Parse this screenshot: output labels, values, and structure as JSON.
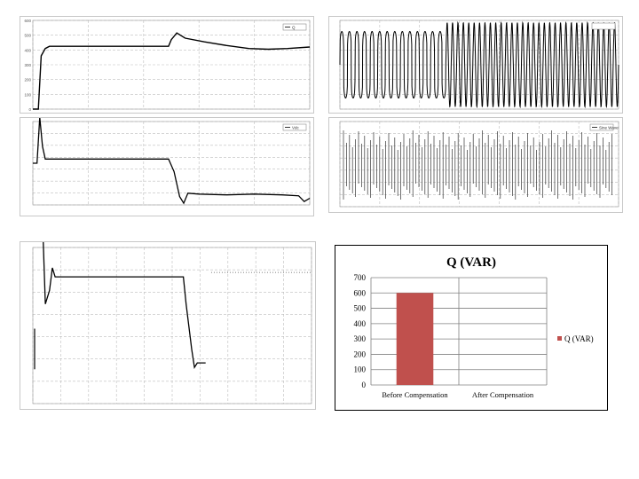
{
  "colors": {
    "trace": "#000000",
    "grid": "#bdbdbd",
    "bar": "#c0504d",
    "frame": "#c8c8c8"
  },
  "bar_chart": {
    "title": "Q (VAR)",
    "legend_label": "Q (VAR)"
  },
  "chart_data": [
    {
      "type": "line",
      "ylim": [
        0,
        600
      ],
      "yticks": [
        "0",
        "100",
        "200",
        "300",
        "400",
        "500",
        "600"
      ],
      "legend": "Q",
      "series": [
        {
          "name": "",
          "points": [
            [
              0.0,
              0
            ],
            [
              0.02,
              0
            ],
            [
              0.03,
              360
            ],
            [
              0.045,
              410
            ],
            [
              0.06,
              425
            ],
            [
              0.49,
              425
            ],
            [
              0.5,
              470
            ],
            [
              0.52,
              515
            ],
            [
              0.55,
              480
            ],
            [
              0.62,
              455
            ],
            [
              0.7,
              430
            ],
            [
              0.78,
              410
            ],
            [
              0.85,
              405
            ],
            [
              0.92,
              410
            ],
            [
              1.0,
              420
            ]
          ]
        }
      ]
    },
    {
      "type": "line",
      "legend": "Vdc",
      "series": [
        {
          "name": "",
          "points": [
            [
              0.0,
              0.5
            ],
            [
              0.015,
              0.5
            ],
            [
              0.025,
              1.05
            ],
            [
              0.035,
              0.7
            ],
            [
              0.045,
              0.55
            ],
            [
              0.06,
              0.55
            ],
            [
              0.49,
              0.55
            ],
            [
              0.51,
              0.4
            ],
            [
              0.53,
              0.1
            ],
            [
              0.545,
              0.02
            ],
            [
              0.56,
              0.14
            ],
            [
              0.6,
              0.13
            ],
            [
              0.7,
              0.12
            ],
            [
              0.8,
              0.13
            ],
            [
              0.9,
              0.12
            ],
            [
              0.96,
              0.11
            ],
            [
              0.98,
              0.04
            ],
            [
              1.0,
              0.08
            ]
          ]
        }
      ]
    },
    {
      "type": "line",
      "series": [
        {
          "name": "",
          "note_shape": "oscillation",
          "amp_before": 0.75,
          "amp_after": 0.95,
          "switch_at": 0.38
        }
      ]
    },
    {
      "type": "line",
      "legend": "Sine Wave",
      "series": [
        {
          "name": "",
          "note_shape": "pulses"
        }
      ]
    },
    {
      "type": "line",
      "series": [
        {
          "name": "",
          "points": [
            [
              0.0,
              0.38
            ],
            [
              0.035,
              0.4
            ],
            [
              0.045,
              0.22
            ],
            [
              0.06,
              0.25
            ],
            [
              0.07,
              0.3
            ],
            [
              0.08,
              0.28
            ],
            [
              0.54,
              0.28
            ],
            [
              0.55,
              0.22
            ],
            [
              0.57,
              0.12
            ],
            [
              0.58,
              0.08
            ],
            [
              0.59,
              0.09
            ],
            [
              0.6,
              0.09
            ],
            [
              0.62,
              0.09
            ]
          ]
        }
      ]
    },
    {
      "type": "bar",
      "categories": [
        "Before Compensation",
        "After Compensation"
      ],
      "values": [
        600,
        0
      ],
      "ylim": [
        0,
        700
      ],
      "yticks": [
        0,
        100,
        200,
        300,
        400,
        500,
        600,
        700
      ],
      "grid": true,
      "legend_position": "right"
    }
  ]
}
